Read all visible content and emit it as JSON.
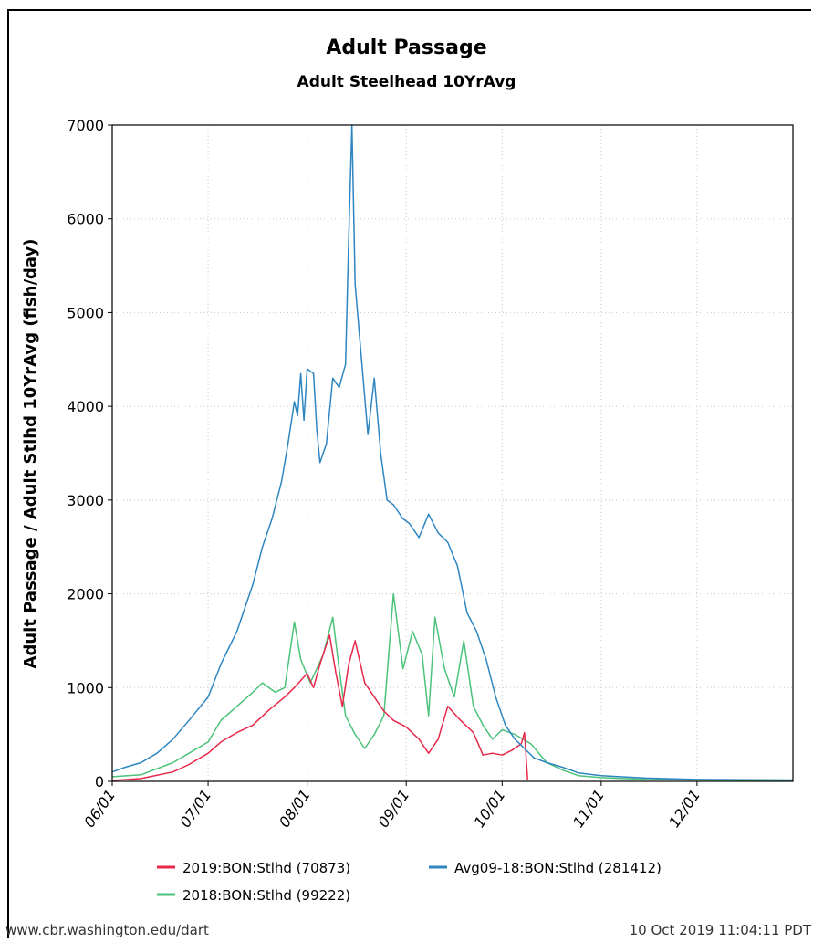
{
  "chart_data": {
    "type": "line",
    "title": "Adult Passage",
    "subtitle": "Adult Steelhead 10YrAvg",
    "xlabel": "",
    "ylabel": "Adult Passage / Adult Stlhd 10YrAvg (fish/day)",
    "ylim": [
      0,
      7000
    ],
    "yticks": [
      0,
      1000,
      2000,
      3000,
      4000,
      5000,
      6000,
      7000
    ],
    "xlim": [
      "06/01",
      "12/31"
    ],
    "xticks": [
      "06/01",
      "07/01",
      "08/01",
      "09/01",
      "10/01",
      "11/01",
      "12/01"
    ],
    "grid": true,
    "legend_position": "bottom",
    "series": [
      {
        "name": "2019:BON:Stlhd (70873)",
        "color": "#e8284a",
        "points": [
          [
            "06/01",
            10
          ],
          [
            "06/10",
            30
          ],
          [
            "06/20",
            100
          ],
          [
            "06/25",
            180
          ],
          [
            "07/01",
            300
          ],
          [
            "07/05",
            420
          ],
          [
            "07/10",
            520
          ],
          [
            "07/15",
            600
          ],
          [
            "07/20",
            760
          ],
          [
            "07/25",
            900
          ],
          [
            "07/28",
            1000
          ],
          [
            "08/01",
            1150
          ],
          [
            "08/03",
            1000
          ],
          [
            "08/05",
            1250
          ],
          [
            "08/08",
            1560
          ],
          [
            "08/10",
            1150
          ],
          [
            "08/12",
            800
          ],
          [
            "08/14",
            1250
          ],
          [
            "08/16",
            1500
          ],
          [
            "08/19",
            1050
          ],
          [
            "08/22",
            900
          ],
          [
            "08/25",
            750
          ],
          [
            "08/28",
            650
          ],
          [
            "09/01",
            580
          ],
          [
            "09/05",
            450
          ],
          [
            "09/08",
            300
          ],
          [
            "09/11",
            450
          ],
          [
            "09/14",
            800
          ],
          [
            "09/18",
            650
          ],
          [
            "09/22",
            520
          ],
          [
            "09/25",
            280
          ],
          [
            "09/28",
            300
          ],
          [
            "10/01",
            280
          ],
          [
            "10/04",
            330
          ],
          [
            "10/07",
            400
          ],
          [
            "10/08",
            520
          ],
          [
            "10/09",
            10
          ]
        ]
      },
      {
        "name": "2018:BON:Stlhd (99222)",
        "color": "#4cc27a",
        "points": [
          [
            "06/01",
            50
          ],
          [
            "06/10",
            70
          ],
          [
            "06/20",
            200
          ],
          [
            "06/25",
            300
          ],
          [
            "07/01",
            420
          ],
          [
            "07/05",
            650
          ],
          [
            "07/10",
            800
          ],
          [
            "07/15",
            950
          ],
          [
            "07/18",
            1050
          ],
          [
            "07/22",
            950
          ],
          [
            "07/25",
            1000
          ],
          [
            "07/28",
            1700
          ],
          [
            "07/30",
            1300
          ],
          [
            "08/02",
            1050
          ],
          [
            "08/06",
            1350
          ],
          [
            "08/09",
            1750
          ],
          [
            "08/11",
            1200
          ],
          [
            "08/13",
            700
          ],
          [
            "08/16",
            500
          ],
          [
            "08/19",
            350
          ],
          [
            "08/22",
            500
          ],
          [
            "08/25",
            700
          ],
          [
            "08/28",
            2000
          ],
          [
            "08/31",
            1200
          ],
          [
            "09/03",
            1600
          ],
          [
            "09/06",
            1350
          ],
          [
            "09/08",
            700
          ],
          [
            "09/10",
            1750
          ],
          [
            "09/13",
            1200
          ],
          [
            "09/16",
            900
          ],
          [
            "09/19",
            1500
          ],
          [
            "09/22",
            800
          ],
          [
            "09/25",
            600
          ],
          [
            "09/28",
            450
          ],
          [
            "10/01",
            550
          ],
          [
            "10/05",
            500
          ],
          [
            "10/10",
            400
          ],
          [
            "10/15",
            200
          ],
          [
            "10/20",
            120
          ],
          [
            "10/25",
            60
          ],
          [
            "11/01",
            40
          ],
          [
            "11/15",
            20
          ],
          [
            "12/01",
            15
          ],
          [
            "12/31",
            10
          ]
        ]
      },
      {
        "name": "Avg09-18:BON:Stlhd (281412)",
        "color": "#2e86c1",
        "points": [
          [
            "06/01",
            100
          ],
          [
            "06/05",
            150
          ],
          [
            "06/10",
            200
          ],
          [
            "06/15",
            300
          ],
          [
            "06/20",
            450
          ],
          [
            "06/25",
            650
          ],
          [
            "07/01",
            900
          ],
          [
            "07/05",
            1250
          ],
          [
            "07/10",
            1600
          ],
          [
            "07/15",
            2100
          ],
          [
            "07/18",
            2500
          ],
          [
            "07/21",
            2800
          ],
          [
            "07/24",
            3200
          ],
          [
            "07/26",
            3600
          ],
          [
            "07/28",
            4050
          ],
          [
            "07/29",
            3900
          ],
          [
            "07/30",
            4350
          ],
          [
            "07/31",
            3850
          ],
          [
            "08/01",
            4400
          ],
          [
            "08/03",
            4350
          ],
          [
            "08/04",
            3750
          ],
          [
            "08/05",
            3400
          ],
          [
            "08/07",
            3600
          ],
          [
            "08/09",
            4300
          ],
          [
            "08/11",
            4200
          ],
          [
            "08/13",
            4450
          ],
          [
            "08/14",
            5800
          ],
          [
            "08/15",
            7000
          ],
          [
            "08/16",
            5300
          ],
          [
            "08/18",
            4500
          ],
          [
            "08/20",
            3700
          ],
          [
            "08/22",
            4300
          ],
          [
            "08/24",
            3500
          ],
          [
            "08/26",
            3000
          ],
          [
            "08/28",
            2950
          ],
          [
            "08/31",
            2800
          ],
          [
            "09/02",
            2750
          ],
          [
            "09/05",
            2600
          ],
          [
            "09/08",
            2850
          ],
          [
            "09/11",
            2650
          ],
          [
            "09/14",
            2550
          ],
          [
            "09/17",
            2300
          ],
          [
            "09/20",
            1800
          ],
          [
            "09/23",
            1600
          ],
          [
            "09/26",
            1300
          ],
          [
            "09/29",
            900
          ],
          [
            "10/02",
            600
          ],
          [
            "10/05",
            450
          ],
          [
            "10/08",
            350
          ],
          [
            "10/11",
            250
          ],
          [
            "10/15",
            200
          ],
          [
            "10/20",
            150
          ],
          [
            "10/25",
            90
          ],
          [
            "11/01",
            60
          ],
          [
            "11/15",
            35
          ],
          [
            "12/01",
            20
          ],
          [
            "12/31",
            15
          ]
        ]
      }
    ]
  },
  "footer": {
    "left": "www.cbr.washington.edu/dart",
    "right": "10 Oct 2019 11:04:11 PDT"
  }
}
